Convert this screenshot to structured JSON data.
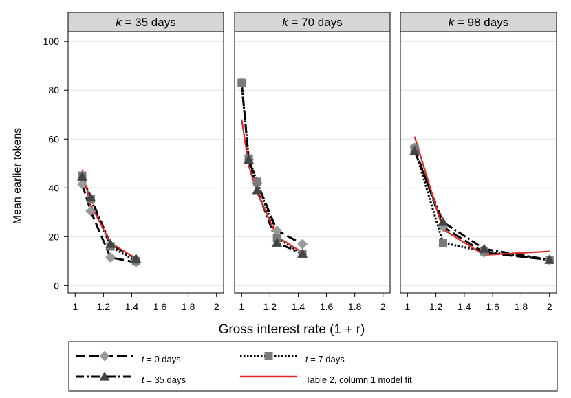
{
  "chart_data": {
    "type": "line",
    "ylabel": "Mean earlier tokens",
    "xlabel": "Gross interest rate (1 + r)",
    "xlim": [
      0.95,
      2.05
    ],
    "ylim": [
      -3,
      104
    ],
    "xticks": [
      "1",
      "1.2",
      "1.4",
      "1.6",
      "1.8",
      "2"
    ],
    "yticks": [
      "0",
      "20",
      "40",
      "60",
      "80",
      "100"
    ],
    "grid": "horizontal",
    "legend_position": "bottom",
    "panels": [
      {
        "title_k": "k",
        "title_rest": " = 35 days",
        "series": [
          {
            "key": "t0",
            "x": [
              1.05,
              1.11,
              1.25,
              1.43
            ],
            "y": [
              41.5,
              30.5,
              11.5,
              9.5
            ]
          },
          {
            "key": "t7",
            "x": [
              1.05,
              1.11,
              1.25,
              1.43
            ],
            "y": [
              45,
              35.5,
              16,
              10
            ]
          },
          {
            "key": "t35",
            "x": [
              1.05,
              1.11,
              1.25,
              1.43
            ],
            "y": [
              44.5,
              36,
              17,
              11
            ]
          },
          {
            "key": "fit",
            "x": [
              1.05,
              1.11,
              1.25,
              1.43
            ],
            "y": [
              47.5,
              33,
              17.5,
              11
            ]
          }
        ]
      },
      {
        "title_k": "k",
        "title_rest": " = 70 days",
        "series": [
          {
            "key": "t0",
            "x": [
              1.0,
              1.05,
              1.11,
              1.25,
              1.43
            ],
            "y": [
              83,
              51.5,
              42,
              22.5,
              17
            ]
          },
          {
            "key": "t7",
            "x": [
              1.0,
              1.05,
              1.11,
              1.25,
              1.43
            ],
            "y": [
              83,
              52,
              42.5,
              19.5,
              13
            ]
          },
          {
            "key": "t35",
            "x": [
              1.0,
              1.05,
              1.11,
              1.25,
              1.43
            ],
            "y": [
              null,
              51.5,
              39,
              17.5,
              13
            ]
          },
          {
            "key": "fit",
            "x": [
              1.0,
              1.05,
              1.11,
              1.25,
              1.43
            ],
            "y": [
              68,
              49,
              38,
              20,
              13.5
            ]
          }
        ]
      },
      {
        "title_k": "k",
        "title_rest": " = 98 days",
        "series": [
          {
            "key": "t0",
            "x": [
              1.05,
              1.25,
              1.54,
              2.0
            ],
            "y": [
              56.5,
              24,
              13.5,
              10.5
            ]
          },
          {
            "key": "t7",
            "x": [
              1.05,
              1.25,
              1.54,
              2.0
            ],
            "y": [
              56,
              17.5,
              14,
              10.5
            ]
          },
          {
            "key": "t35",
            "x": [
              1.05,
              1.25,
              1.54,
              2.0
            ],
            "y": [
              55,
              26,
              15,
              10.5
            ]
          },
          {
            "key": "fit",
            "x": [
              1.05,
              1.25,
              1.54,
              2.0
            ],
            "y": [
              61,
              23,
              12.5,
              14
            ]
          }
        ]
      }
    ],
    "legend": {
      "t0": {
        "var": "t",
        "rest": " = 0 days"
      },
      "t7": {
        "var": "t",
        "rest": " = 7 days"
      },
      "t35": {
        "var": "t",
        "rest": " = 35 days"
      },
      "fit": {
        "var": "",
        "rest": "Table 2, column 1 model fit"
      }
    },
    "styles": {
      "t0": {
        "color": "#000000",
        "dash": "14,6",
        "marker": "diamond",
        "marker_color": "#9a9a9a"
      },
      "t7": {
        "color": "#000000",
        "dash": "2.5,2.5",
        "marker": "square",
        "marker_color": "#7a7a7a"
      },
      "t35": {
        "color": "#000000",
        "dash": "12,4,3,4",
        "marker": "triangle",
        "marker_color": "#444444"
      },
      "fit": {
        "color": "#e0282a",
        "dash": "",
        "marker": "none",
        "marker_color": ""
      }
    },
    "panel_header_color": "#d6d6d6",
    "grid_color": "#e4e4e4"
  }
}
